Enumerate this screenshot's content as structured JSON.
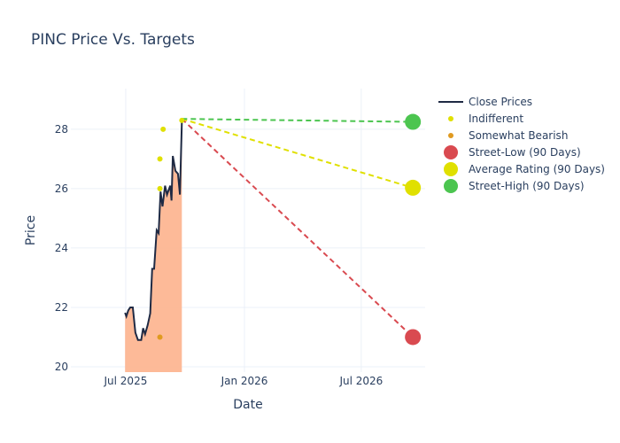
{
  "chart_data": {
    "type": "line",
    "title": "PINC Price Vs. Targets",
    "xlabel": "Date",
    "ylabel": "Price",
    "xlim": [
      "2025-04-07",
      "2026-10-08"
    ],
    "ylim": [
      19.82,
      29.37
    ],
    "x_ticks": [
      {
        "date": "2025-07-01",
        "label": "Jul 2025"
      },
      {
        "date": "2026-01-01",
        "label": "Jan 2026"
      },
      {
        "date": "2026-07-01",
        "label": "Jul 2026"
      }
    ],
    "y_ticks": [
      20,
      22,
      24,
      26,
      28
    ],
    "grid": true,
    "legend_position": "right",
    "colors": {
      "close": "#1f2a44",
      "fill": "#fdb38d",
      "indifferent": "#e0e000",
      "somewhat_bearish": "#e09a20",
      "low": "#d94a50",
      "average": "#e0e000",
      "high": "#4cc550"
    },
    "close_prices": {
      "name": "Close Prices",
      "dates": [
        "2025-06-30",
        "2025-07-02",
        "2025-07-05",
        "2025-07-08",
        "2025-07-12",
        "2025-07-16",
        "2025-07-20",
        "2025-07-25",
        "2025-07-28",
        "2025-07-31",
        "2025-08-04",
        "2025-08-08",
        "2025-08-11",
        "2025-08-14",
        "2025-08-18",
        "2025-08-21",
        "2025-08-24",
        "2025-08-27",
        "2025-08-31",
        "2025-09-03",
        "2025-09-08",
        "2025-09-10",
        "2025-09-12",
        "2025-09-16",
        "2025-09-20",
        "2025-09-23",
        "2025-09-26"
      ],
      "values": [
        21.82,
        21.7,
        21.9,
        22.0,
        22.0,
        21.15,
        20.9,
        20.9,
        21.3,
        21.1,
        21.4,
        21.8,
        23.3,
        23.3,
        24.6,
        24.5,
        25.9,
        25.4,
        26.1,
        25.8,
        26.1,
        25.6,
        27.1,
        26.6,
        26.5,
        25.8,
        28.24
      ]
    },
    "indifferent": {
      "name": "Indifferent",
      "points": [
        {
          "date": "2025-08-23",
          "value": 27
        },
        {
          "date": "2025-08-28",
          "value": 28
        },
        {
          "date": "2025-08-23",
          "value": 26
        },
        {
          "date": "2025-09-26",
          "value": 28.3
        }
      ]
    },
    "somewhat_bearish": {
      "name": "Somewhat Bearish",
      "points": [
        {
          "date": "2025-08-23",
          "value": 21
        }
      ]
    },
    "targets": {
      "start": {
        "date": "2025-09-26",
        "value": 28.35
      },
      "end_date": "2026-09-19",
      "low": {
        "name": "Street-Low (90 Days)",
        "value": 21.0
      },
      "average": {
        "name": "Average Rating (90 Days)",
        "value": 26.03
      },
      "high": {
        "name": "Street-High (90 Days)",
        "value": 28.25
      }
    },
    "legend": [
      "Close Prices",
      "Indifferent",
      "Somewhat Bearish",
      "Street-Low (90 Days)",
      "Average Rating (90 Days)",
      "Street-High (90 Days)"
    ]
  }
}
